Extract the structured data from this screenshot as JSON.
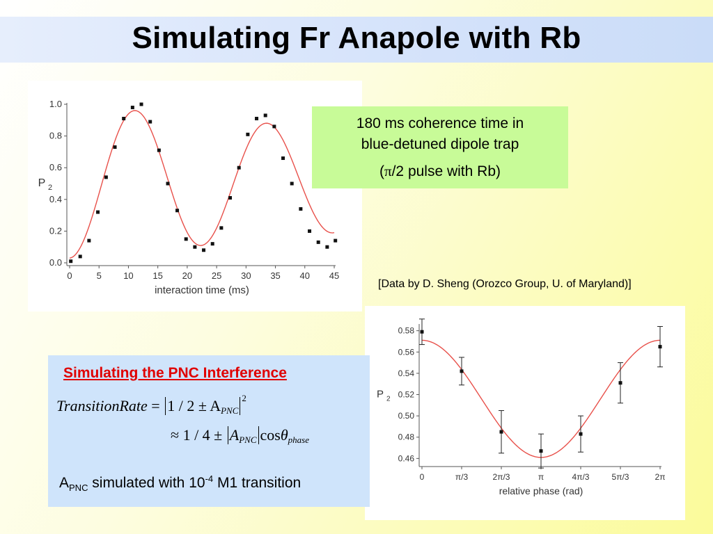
{
  "slide": {
    "title": "Simulating Fr Anapole with Rb",
    "note": {
      "line1": "180 ms coherence time in",
      "line2": "blue-detuned dipole trap",
      "line3_pre": "(",
      "line3_pi": "π",
      "line3_post": "/2 pulse with Rb)"
    },
    "credit": "[Data by D. Sheng (Orozco Group, U. of Maryland)]",
    "pnc": {
      "title": "Simulating the PNC Interference",
      "eq1_lhs": "TransitionRate",
      "eq1_eq": " = ",
      "eq1_body": "1 / 2 ± A",
      "eq1_sub": "PNC",
      "eq1_sup": "2",
      "eq2_pre": "≈ 1 / 4 ± ",
      "eq2_a": "A",
      "eq2_sub": "PNC",
      "eq2_cos": "cos",
      "eq2_theta": "θ",
      "eq2_theta_sub": "phase",
      "line_a": "A",
      "line_sub": "PNC",
      "line_mid": " simulated with 10",
      "line_sup": "-4",
      "line_end": " M1 transition"
    }
  },
  "chart_data": [
    {
      "type": "scatter",
      "xlabel": "interaction time (ms)",
      "ylabel": "P",
      "ylabel_sub": "2",
      "xlim": [
        0,
        45
      ],
      "ylim": [
        0,
        1.0
      ],
      "xticks": [
        0,
        5,
        10,
        15,
        20,
        25,
        30,
        35,
        40,
        45
      ],
      "yticks": [
        0.0,
        0.2,
        0.4,
        0.6,
        0.8,
        1.0
      ],
      "ytick_labels": [
        "0.0",
        "0.2",
        "0.4",
        "0.6",
        "0.8",
        "1.0"
      ],
      "points": [
        [
          0.2,
          0.01
        ],
        [
          1.8,
          0.04
        ],
        [
          3.3,
          0.14
        ],
        [
          4.8,
          0.32
        ],
        [
          6.2,
          0.54
        ],
        [
          7.7,
          0.73
        ],
        [
          9.2,
          0.91
        ],
        [
          10.7,
          0.98
        ],
        [
          12.2,
          1.0
        ],
        [
          13.7,
          0.89
        ],
        [
          15.2,
          0.71
        ],
        [
          16.7,
          0.5
        ],
        [
          18.3,
          0.33
        ],
        [
          19.8,
          0.15
        ],
        [
          21.3,
          0.1
        ],
        [
          22.8,
          0.08
        ],
        [
          24.3,
          0.12
        ],
        [
          25.8,
          0.22
        ],
        [
          27.3,
          0.41
        ],
        [
          28.8,
          0.6
        ],
        [
          30.3,
          0.81
        ],
        [
          31.8,
          0.91
        ],
        [
          33.3,
          0.93
        ],
        [
          34.8,
          0.86
        ],
        [
          36.3,
          0.66
        ],
        [
          37.8,
          0.5
        ],
        [
          39.3,
          0.34
        ],
        [
          40.8,
          0.2
        ],
        [
          42.3,
          0.13
        ],
        [
          43.8,
          0.1
        ],
        [
          45.2,
          0.14
        ]
      ],
      "fit": {
        "offset": 0.515,
        "amp_start": 0.485,
        "amp_end": 0.325,
        "period_ms": 22.4,
        "phase_ms": 11.2
      },
      "marker_color": "#111111",
      "fit_color": "#e8504a"
    },
    {
      "type": "scatter",
      "xlabel": "relative phase (rad)",
      "ylabel": "P",
      "ylabel_sub": "2",
      "xlim": [
        0,
        6.2832
      ],
      "ylim": [
        0.455,
        0.585
      ],
      "xticks": [
        0,
        1.0472,
        2.0944,
        3.1416,
        4.1888,
        5.236,
        6.2832
      ],
      "xtick_labels": [
        "0",
        "π/3",
        "2π/3",
        "π",
        "4π/3",
        "5π/3",
        "2π"
      ],
      "yticks": [
        0.46,
        0.48,
        0.5,
        0.52,
        0.54,
        0.56,
        0.58
      ],
      "ytick_labels": [
        "0.46",
        "0.48",
        "0.50",
        "0.52",
        "0.54",
        "0.56",
        "0.58"
      ],
      "points": [
        {
          "x": 0,
          "y": 0.579,
          "err": 0.012
        },
        {
          "x": 1.0472,
          "y": 0.542,
          "err": 0.013
        },
        {
          "x": 2.0944,
          "y": 0.485,
          "err": 0.02
        },
        {
          "x": 3.1416,
          "y": 0.467,
          "err": 0.016
        },
        {
          "x": 4.1888,
          "y": 0.483,
          "err": 0.017
        },
        {
          "x": 5.236,
          "y": 0.531,
          "err": 0.019
        },
        {
          "x": 6.2832,
          "y": 0.565,
          "err": 0.019
        }
      ],
      "fit": {
        "offset": 0.516,
        "amp": 0.055
      },
      "marker_color": "#111111",
      "fit_color": "#e8504a"
    }
  ]
}
